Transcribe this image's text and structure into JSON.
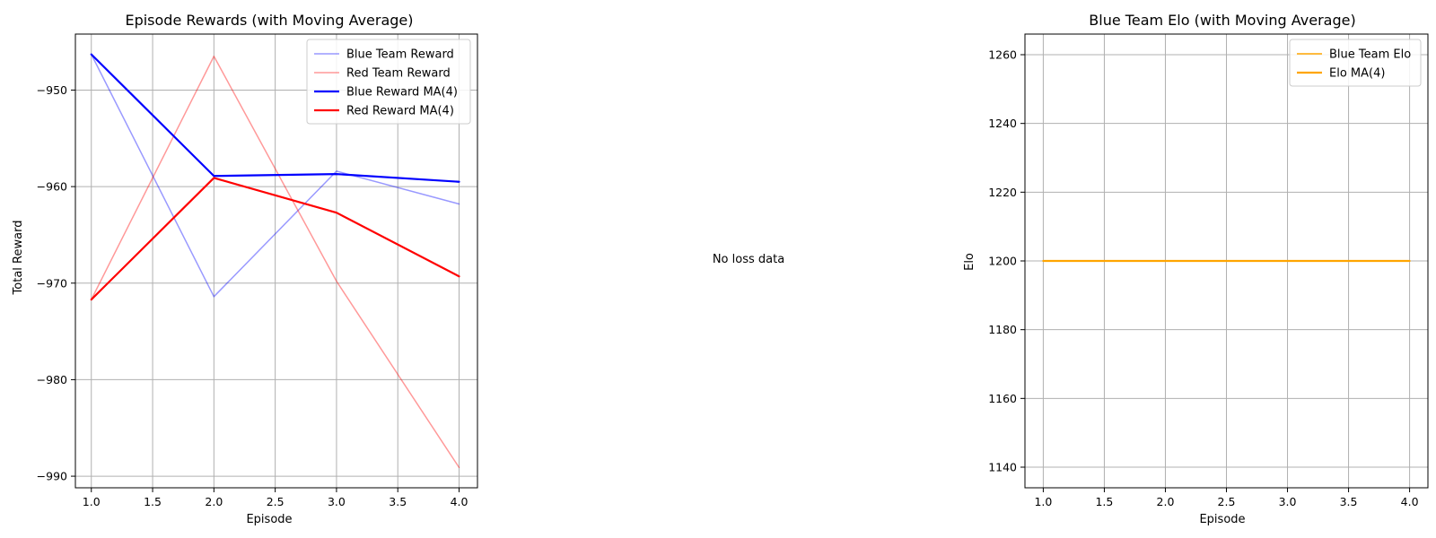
{
  "chart_data": [
    {
      "type": "line",
      "title": "Episode Rewards (with Moving Average)",
      "xlabel": "Episode",
      "ylabel": "Total Reward",
      "xlim": [
        0.87,
        4.15
      ],
      "ylim": [
        -991.2,
        -944.2
      ],
      "xticks": [
        1.0,
        1.5,
        2.0,
        2.5,
        3.0,
        3.5,
        4.0
      ],
      "xtick_labels": [
        "1.0",
        "1.5",
        "2.0",
        "2.5",
        "3.0",
        "3.5",
        "4.0"
      ],
      "yticks": [
        -990,
        -980,
        -970,
        -960,
        -950
      ],
      "ytick_labels": [
        "−990",
        "−980",
        "−970",
        "−960",
        "−950"
      ],
      "grid": true,
      "legend_position": "upper right",
      "x": [
        1,
        2,
        3,
        4
      ],
      "series": [
        {
          "name": "Blue Team Reward",
          "values": [
            -946.3,
            -971.4,
            -958.4,
            -961.8
          ],
          "color": "#0000ff",
          "opacity": 0.4,
          "width": 1.5
        },
        {
          "name": "Red Team Reward",
          "values": [
            -971.7,
            -946.5,
            -969.8,
            -989.1
          ],
          "color": "#ff0000",
          "opacity": 0.4,
          "width": 1.5
        },
        {
          "name": "Blue Reward MA(4)",
          "values": [
            -946.3,
            -958.9,
            -958.7,
            -959.5
          ],
          "color": "#0000ff",
          "opacity": 1,
          "width": 2.2
        },
        {
          "name": "Red Reward MA(4)",
          "values": [
            -971.7,
            -959.1,
            -962.7,
            -969.3
          ],
          "color": "#ff0000",
          "opacity": 1,
          "width": 2.2
        }
      ]
    },
    {
      "type": "text",
      "message": "No loss data"
    },
    {
      "type": "line",
      "title": "Blue Team Elo (with Moving Average)",
      "xlabel": "Episode",
      "ylabel": "Elo",
      "xlim": [
        0.85,
        4.15
      ],
      "ylim": [
        1134,
        1266
      ],
      "xticks": [
        1.0,
        1.5,
        2.0,
        2.5,
        3.0,
        3.5,
        4.0
      ],
      "xtick_labels": [
        "1.0",
        "1.5",
        "2.0",
        "2.5",
        "3.0",
        "3.5",
        "4.0"
      ],
      "yticks": [
        1140,
        1160,
        1180,
        1200,
        1220,
        1240,
        1260
      ],
      "ytick_labels": [
        "1140",
        "1160",
        "1180",
        "1200",
        "1220",
        "1240",
        "1260"
      ],
      "grid": true,
      "legend_position": "upper right",
      "x": [
        1,
        2,
        3,
        4
      ],
      "series": [
        {
          "name": "Blue Team Elo",
          "values": [
            1200,
            1200,
            1200,
            1200
          ],
          "color": "#ffa500",
          "opacity": 1,
          "width": 1.5
        },
        {
          "name": "Elo MA(4)",
          "values": [
            1200,
            1200,
            1200,
            1200
          ],
          "color": "#ffa500",
          "opacity": 1,
          "width": 2.2
        }
      ]
    }
  ]
}
